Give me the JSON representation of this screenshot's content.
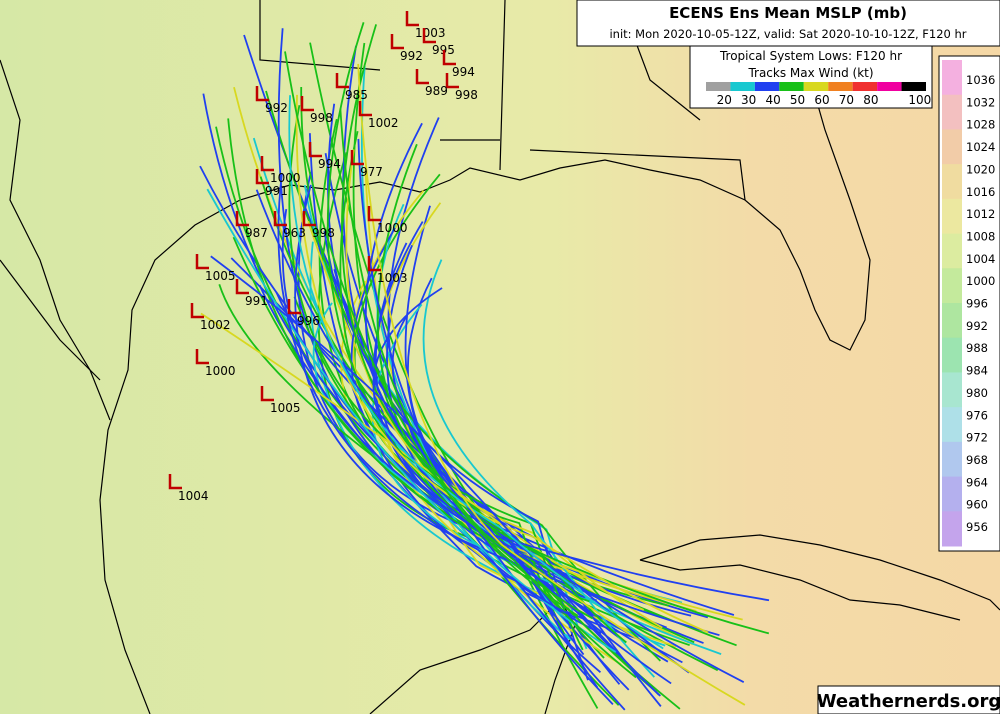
{
  "header": {
    "title": "ECENS Ens Mean MSLP (mb)",
    "subtitle": "init: Mon 2020-10-05-12Z, valid: Sat 2020-10-10-12Z, F120 hr"
  },
  "wind_legend": {
    "title1": "Tropical System Lows: F120 hr",
    "title2": "Tracks Max Wind (kt)",
    "ticks": [
      20,
      30,
      40,
      50,
      60,
      70,
      80,
      100
    ],
    "colors": [
      "#a0a0a0",
      "#18c8d0",
      "#2040f0",
      "#18c018",
      "#d8d820",
      "#f08020",
      "#f03030",
      "#f000a0",
      "#000000"
    ]
  },
  "pressure_legend": {
    "ticks": [
      1036,
      1032,
      1028,
      1024,
      1020,
      1016,
      1012,
      1008,
      1004,
      1000,
      996,
      992,
      988,
      984,
      980,
      976,
      972,
      968,
      964,
      960,
      956
    ],
    "colors": [
      "#f4b0e0",
      "#f3c0c0",
      "#f2cca8",
      "#f0dca0",
      "#ece8a0",
      "#dcecA0",
      "#c4ea9c",
      "#aee6a0",
      "#9ce4b0",
      "#a8e6d0",
      "#aee0e8",
      "#b0c8ee",
      "#b4b0ee",
      "#c4a4ec"
    ]
  },
  "lows": [
    "1003",
    "995",
    "992",
    "994",
    "998",
    "989",
    "992",
    "998",
    "1002",
    "985",
    "994",
    "977",
    "1000",
    "991",
    "1005",
    "1002",
    "1000",
    "1005",
    "1004",
    "1003",
    "996",
    "1000",
    "987",
    "963",
    "998",
    "991"
  ],
  "watermark": "Weathernerds.org"
}
